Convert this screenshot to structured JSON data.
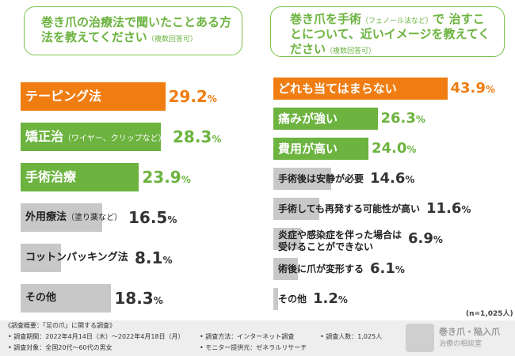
{
  "left_panel": {
    "question": "巻き爪の治療法で聞いたことある方法を教えてください",
    "note": "（複数回答可）"
  },
  "right_panel": {
    "question_line1": "巻き爪を手術",
    "question_note1": "（フェノール法など）",
    "question_line1b": "で",
    "question_line2": "治すことについて、近いイメージを教えてください",
    "note": "（複数回答可）"
  },
  "chart_data": [
    {
      "type": "bar",
      "orientation": "horizontal",
      "title": "巻き爪の治療法で聞いたことある方法を教えてください（複数回答可）",
      "unit": "%",
      "xlim": [
        0,
        40
      ],
      "categories": [
        "テーピング法",
        "矯正治",
        "手術治療",
        "外用療法",
        "コットンパッキング法",
        "その他"
      ],
      "sublabels": [
        "",
        "（ワイヤー、クリップなど）",
        "",
        "（塗り薬など）",
        "",
        ""
      ],
      "values": [
        29.2,
        28.3,
        23.9,
        16.5,
        8.1,
        18.3
      ],
      "colors": [
        "#f07d12",
        "#6cb33f",
        "#6cb33f",
        "#c8c8c8",
        "#c8c8c8",
        "#c8c8c8"
      ],
      "display": [
        "29.2",
        "28.3",
        "23.9",
        "16.5",
        "8.1",
        "18.3"
      ]
    },
    {
      "type": "bar",
      "orientation": "horizontal",
      "title": "巻き爪を手術（フェノール法など）で治すことについて、近いイメージを教えてください（複数回答可）",
      "unit": "%",
      "xlim": [
        0,
        60
      ],
      "categories": [
        "どれも当てはまらない",
        "痛みが強い",
        "費用が高い",
        "手術後は安静が必要",
        "手術しても再発する可能性が高い",
        "炎症や感染症を伴った場合は受けることができない",
        "術後に爪が変形する",
        "その他"
      ],
      "label_lines": [
        [
          "どれも当てはまらない"
        ],
        [
          "痛みが強い"
        ],
        [
          "費用が高い"
        ],
        [
          "手術後は安静が必要"
        ],
        [
          "手術しても再発する可能性が高い"
        ],
        [
          "炎症や感染症を伴った場合は",
          "受けることができない"
        ],
        [
          "術後に爪が変形する"
        ],
        [
          "その他"
        ]
      ],
      "values": [
        43.9,
        26.3,
        24.0,
        14.6,
        11.6,
        6.9,
        6.1,
        1.2
      ],
      "colors": [
        "#f07d12",
        "#6cb33f",
        "#6cb33f",
        "#c8c8c8",
        "#c8c8c8",
        "#c8c8c8",
        "#c8c8c8",
        "#c8c8c8"
      ],
      "display": [
        "43.9",
        "26.3",
        "24.0",
        "14.6",
        "11.6",
        "6.9",
        "6.1",
        "1.2"
      ],
      "sample_size": "(n=1,025人)"
    }
  ],
  "footer": {
    "overview": "《調査概要：「足の爪」に関する調査》",
    "period": "• 調査期間：2022年4月14日（木）〜2022年4月18日（月）",
    "method": "• 調査方法：インターネット調査",
    "count": "• 調査人数：1,025人",
    "target": "• 調査対象：全国20代〜60代の男女",
    "provider": "• モニター提供元：ゼネラルリサーチ"
  },
  "logo": {
    "line1": "巻き爪・陥入爪",
    "line2": "治療の相談室"
  }
}
